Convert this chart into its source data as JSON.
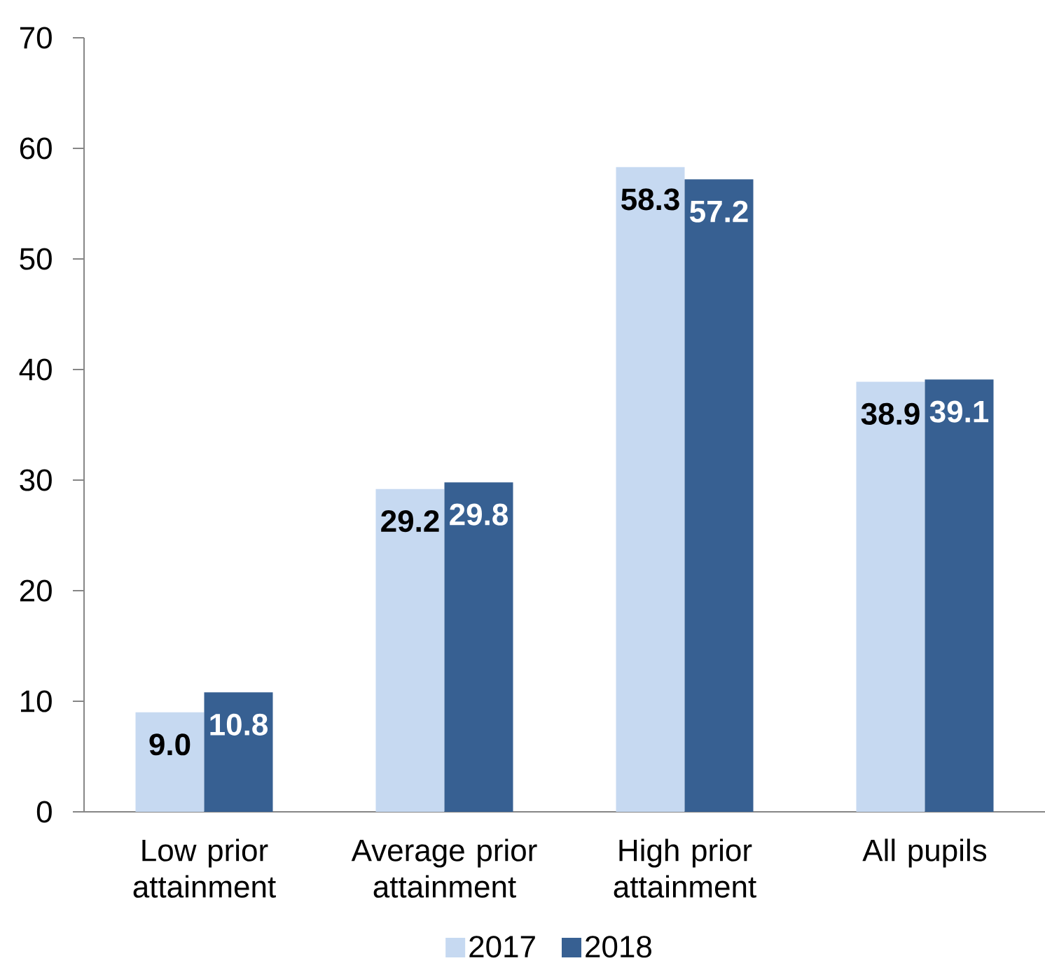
{
  "chart_data": {
    "type": "bar",
    "categories": [
      "Low prior attainment",
      "Average prior attainment",
      "High prior attainment",
      "All pupils"
    ],
    "series": [
      {
        "name": "2017",
        "color": "#c6d9f1",
        "values": [
          9.0,
          29.2,
          58.3,
          38.9
        ],
        "value_labels": [
          "9.0",
          "29.2",
          "58.3",
          "38.9"
        ]
      },
      {
        "name": "2018",
        "color": "#376092",
        "values": [
          10.8,
          29.8,
          57.2,
          39.1
        ],
        "value_labels": [
          "10.8",
          "29.8",
          "57.2",
          "39.1"
        ]
      }
    ],
    "ylim": [
      0,
      70
    ],
    "yticks": [
      0,
      10,
      20,
      30,
      40,
      50,
      60,
      70
    ],
    "legend": "bottom"
  }
}
